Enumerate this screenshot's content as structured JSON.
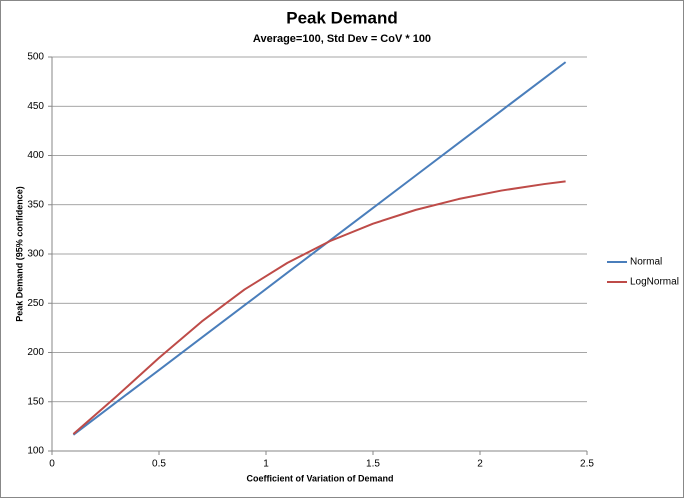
{
  "chart_data": {
    "type": "line",
    "title": "Peak Demand",
    "subtitle": "Average=100, Std Dev = CoV * 100",
    "x_label": "Coefficient of Variation  of Demand",
    "y_label": "Peak Demand (95% confidence)",
    "x": [
      0.1,
      0.3,
      0.5,
      0.7,
      0.9,
      1.1,
      1.3,
      1.5,
      1.7,
      1.9,
      2.1,
      2.3,
      2.4
    ],
    "series": [
      {
        "name": "Normal",
        "color": "#4a7ebb",
        "values": [
          116.4,
          149.4,
          182.2,
          215.2,
          248.0,
          281.0,
          313.9,
          346.8,
          379.7,
          412.6,
          445.5,
          478.4,
          494.8
        ]
      },
      {
        "name": "LogNormal",
        "color": "#be4b48",
        "values": [
          117.2,
          155.2,
          194.5,
          231.5,
          264.0,
          291.0,
          313.2,
          330.8,
          344.8,
          355.8,
          364.4,
          371.0,
          373.7
        ]
      }
    ],
    "xlim": [
      0,
      2.5
    ],
    "xticks": [
      0,
      0.5,
      1,
      1.5,
      2,
      2.5
    ],
    "ylim": [
      100,
      500
    ],
    "yticks": [
      100,
      150,
      200,
      250,
      300,
      350,
      400,
      450,
      500
    ],
    "grid": true,
    "legend": "right"
  }
}
